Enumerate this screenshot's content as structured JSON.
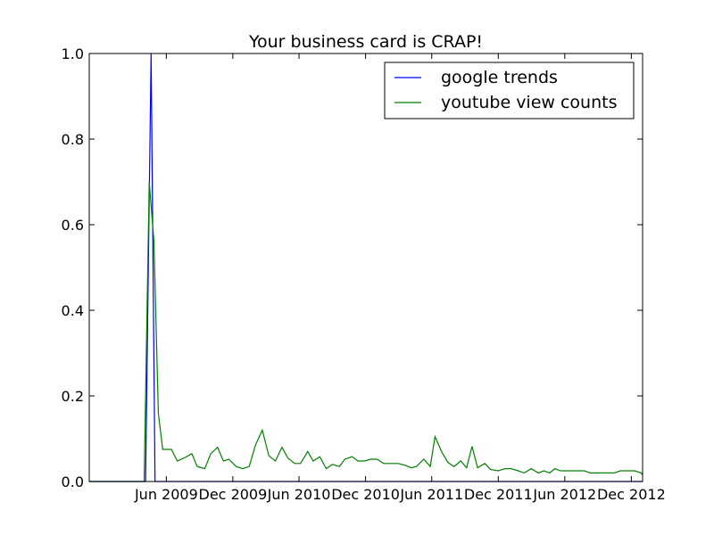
{
  "chart_data": {
    "type": "line",
    "title": "Your business card is CRAP!",
    "xlabel": "",
    "ylabel": "",
    "xlim": [
      "2008-11-01",
      "2013-01-01"
    ],
    "ylim": [
      0,
      1.0
    ],
    "grid": false,
    "legend_position": "top-right",
    "y_ticks": [
      "0.0",
      "0.2",
      "0.4",
      "0.6",
      "0.8",
      "1.0"
    ],
    "x_ticks": [
      {
        "date": "2009-06-01",
        "label": "Jun 2009"
      },
      {
        "date": "2009-12-01",
        "label": "Dec 2009"
      },
      {
        "date": "2010-06-01",
        "label": "Jun 2010"
      },
      {
        "date": "2010-12-01",
        "label": "Dec 2010"
      },
      {
        "date": "2011-06-01",
        "label": "Jun 2011"
      },
      {
        "date": "2011-12-01",
        "label": "Dec 2011"
      },
      {
        "date": "2012-06-01",
        "label": "Jun 2012"
      },
      {
        "date": "2012-12-01",
        "label": "Dec 2012"
      }
    ],
    "series": [
      {
        "name": "google trends",
        "color": "#0000ff",
        "points": [
          [
            "2008-11-01",
            0
          ],
          [
            "2009-04-05",
            0
          ],
          [
            "2009-04-20",
            1.0
          ],
          [
            "2009-05-01",
            0
          ],
          [
            "2013-01-01",
            0
          ]
        ]
      },
      {
        "name": "youtube view counts",
        "color": "#008000",
        "points": [
          [
            "2008-11-01",
            0
          ],
          [
            "2009-04-01",
            0
          ],
          [
            "2009-04-15",
            0.7
          ],
          [
            "2009-04-28",
            0.56
          ],
          [
            "2009-05-10",
            0.16
          ],
          [
            "2009-05-22",
            0.075
          ],
          [
            "2009-06-15",
            0.075
          ],
          [
            "2009-07-01",
            0.048
          ],
          [
            "2009-07-20",
            0.055
          ],
          [
            "2009-08-10",
            0.065
          ],
          [
            "2009-08-25",
            0.035
          ],
          [
            "2009-09-15",
            0.03
          ],
          [
            "2009-10-01",
            0.065
          ],
          [
            "2009-10-20",
            0.08
          ],
          [
            "2009-11-05",
            0.048
          ],
          [
            "2009-11-20",
            0.052
          ],
          [
            "2009-12-10",
            0.035
          ],
          [
            "2009-12-28",
            0.03
          ],
          [
            "2010-01-15",
            0.035
          ],
          [
            "2010-02-01",
            0.085
          ],
          [
            "2010-02-20",
            0.12
          ],
          [
            "2010-03-10",
            0.06
          ],
          [
            "2010-03-28",
            0.048
          ],
          [
            "2010-04-15",
            0.08
          ],
          [
            "2010-05-01",
            0.055
          ],
          [
            "2010-05-20",
            0.042
          ],
          [
            "2010-06-05",
            0.042
          ],
          [
            "2010-06-25",
            0.07
          ],
          [
            "2010-07-10",
            0.048
          ],
          [
            "2010-07-28",
            0.058
          ],
          [
            "2010-08-15",
            0.03
          ],
          [
            "2010-09-01",
            0.04
          ],
          [
            "2010-09-20",
            0.035
          ],
          [
            "2010-10-05",
            0.052
          ],
          [
            "2010-10-25",
            0.058
          ],
          [
            "2010-11-10",
            0.048
          ],
          [
            "2010-11-28",
            0.048
          ],
          [
            "2010-12-15",
            0.052
          ],
          [
            "2011-01-01",
            0.052
          ],
          [
            "2011-01-20",
            0.042
          ],
          [
            "2011-02-10",
            0.042
          ],
          [
            "2011-03-01",
            0.042
          ],
          [
            "2011-03-20",
            0.038
          ],
          [
            "2011-04-05",
            0.032
          ],
          [
            "2011-04-20",
            0.035
          ],
          [
            "2011-05-10",
            0.052
          ],
          [
            "2011-05-28",
            0.035
          ],
          [
            "2011-06-10",
            0.105
          ],
          [
            "2011-06-28",
            0.07
          ],
          [
            "2011-07-15",
            0.045
          ],
          [
            "2011-08-01",
            0.035
          ],
          [
            "2011-08-20",
            0.048
          ],
          [
            "2011-09-05",
            0.032
          ],
          [
            "2011-09-20",
            0.082
          ],
          [
            "2011-10-05",
            0.032
          ],
          [
            "2011-10-25",
            0.042
          ],
          [
            "2011-11-10",
            0.028
          ],
          [
            "2011-12-01",
            0.025
          ],
          [
            "2011-12-20",
            0.03
          ],
          [
            "2012-01-05",
            0.03
          ],
          [
            "2012-01-25",
            0.025
          ],
          [
            "2012-02-10",
            0.02
          ],
          [
            "2012-03-01",
            0.03
          ],
          [
            "2012-03-20",
            0.02
          ],
          [
            "2012-04-05",
            0.025
          ],
          [
            "2012-04-20",
            0.02
          ],
          [
            "2012-05-05",
            0.03
          ],
          [
            "2012-05-20",
            0.025
          ],
          [
            "2012-06-10",
            0.025
          ],
          [
            "2012-07-01",
            0.025
          ],
          [
            "2012-07-25",
            0.025
          ],
          [
            "2012-08-10",
            0.02
          ],
          [
            "2012-09-01",
            0.02
          ],
          [
            "2012-09-25",
            0.02
          ],
          [
            "2012-10-15",
            0.02
          ],
          [
            "2012-11-01",
            0.025
          ],
          [
            "2012-11-25",
            0.025
          ],
          [
            "2012-12-10",
            0.025
          ],
          [
            "2012-12-28",
            0.02
          ],
          [
            "2013-01-01",
            0.015
          ]
        ]
      }
    ]
  }
}
